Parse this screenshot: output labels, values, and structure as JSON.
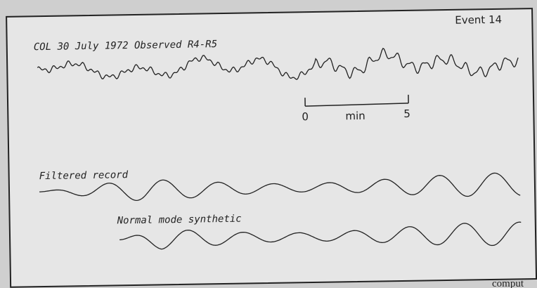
{
  "figure": {
    "event": "Event 14",
    "observed_label": "COL 30 July 1972 Observed R4-R5",
    "scale": {
      "start": "0",
      "unit": "min",
      "end": "5"
    },
    "filtered_label": "Filtered record",
    "synthetic_label": "Normal mode synthetic",
    "caption_fragment": "comput"
  }
}
